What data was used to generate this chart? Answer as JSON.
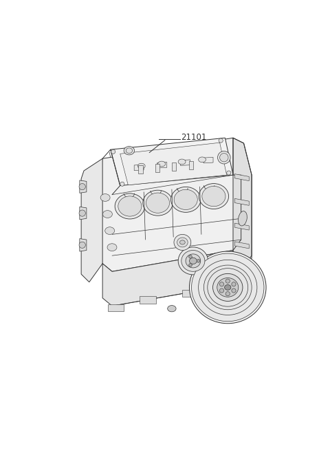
{
  "background_color": "#ffffff",
  "figure_width": 4.8,
  "figure_height": 6.55,
  "dpi": 100,
  "part_label": "21101",
  "line_color": "#333333",
  "line_width": 0.7,
  "annotation_fontsize": 8.5,
  "img_extent": [
    50,
    430,
    130,
    530
  ]
}
